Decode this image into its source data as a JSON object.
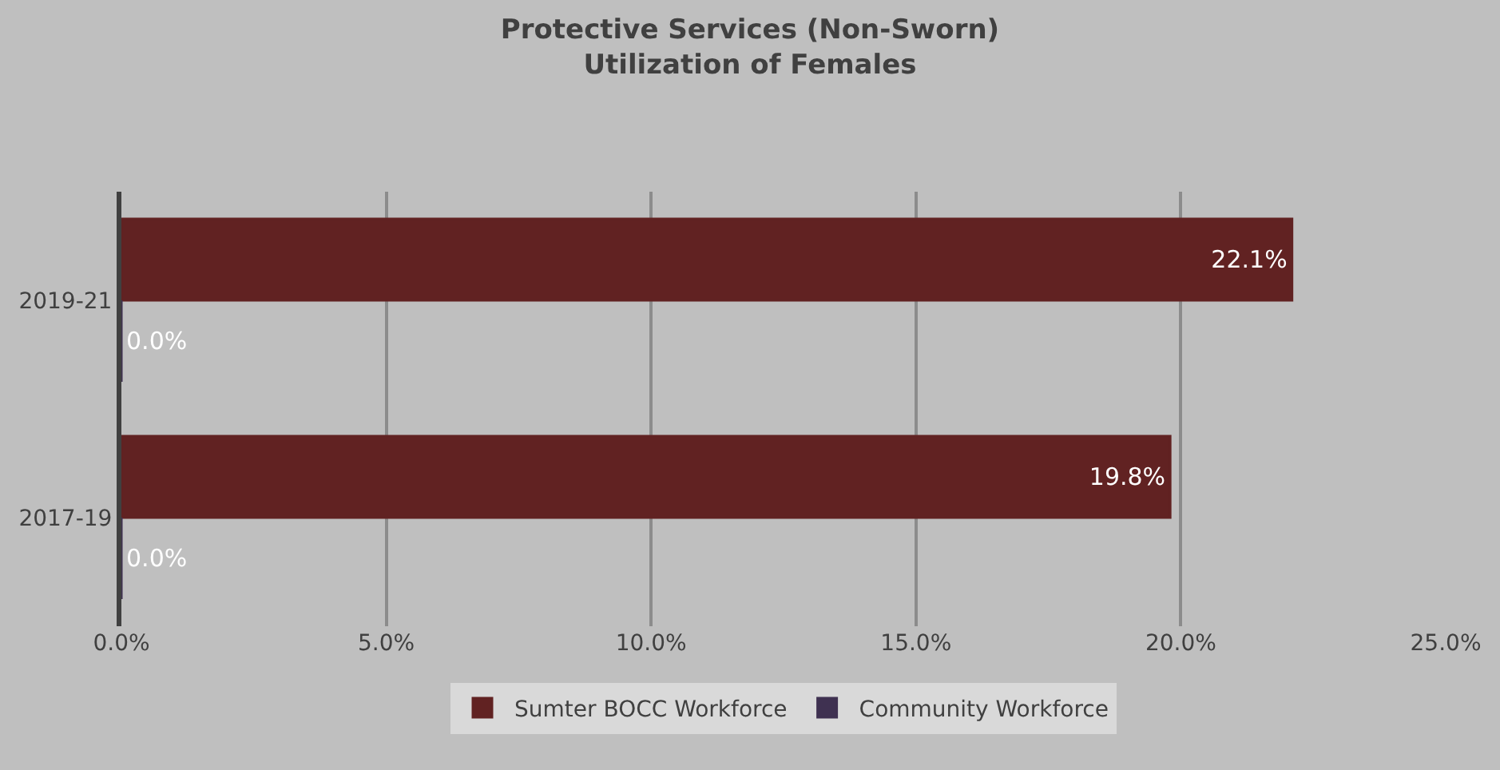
{
  "chart_data": {
    "type": "bar",
    "orientation": "horizontal",
    "title": "Protective Services (Non-Sworn)\nUtilization of Females",
    "categories": [
      "2019-21",
      "2017-19"
    ],
    "series": [
      {
        "name": "Sumter BOCC Workforce",
        "color": "#612222",
        "values": [
          22.1,
          19.8
        ],
        "value_labels": [
          "22.1%",
          "19.8%"
        ]
      },
      {
        "name": "Community Workforce",
        "color": "#3f3151",
        "values": [
          0.0,
          0.0
        ],
        "value_labels": [
          "0.0%",
          "0.0%"
        ]
      }
    ],
    "xlim": [
      0,
      25
    ],
    "xticks": [
      {
        "value": 0,
        "label": "0.0%"
      },
      {
        "value": 5,
        "label": "5.0%"
      },
      {
        "value": 10,
        "label": "10.0%"
      },
      {
        "value": 15,
        "label": "15.0%"
      },
      {
        "value": 20,
        "label": "20.0%"
      },
      {
        "value": 25,
        "label": "25.0%"
      }
    ],
    "grid": "x",
    "legend": "bottom"
  }
}
